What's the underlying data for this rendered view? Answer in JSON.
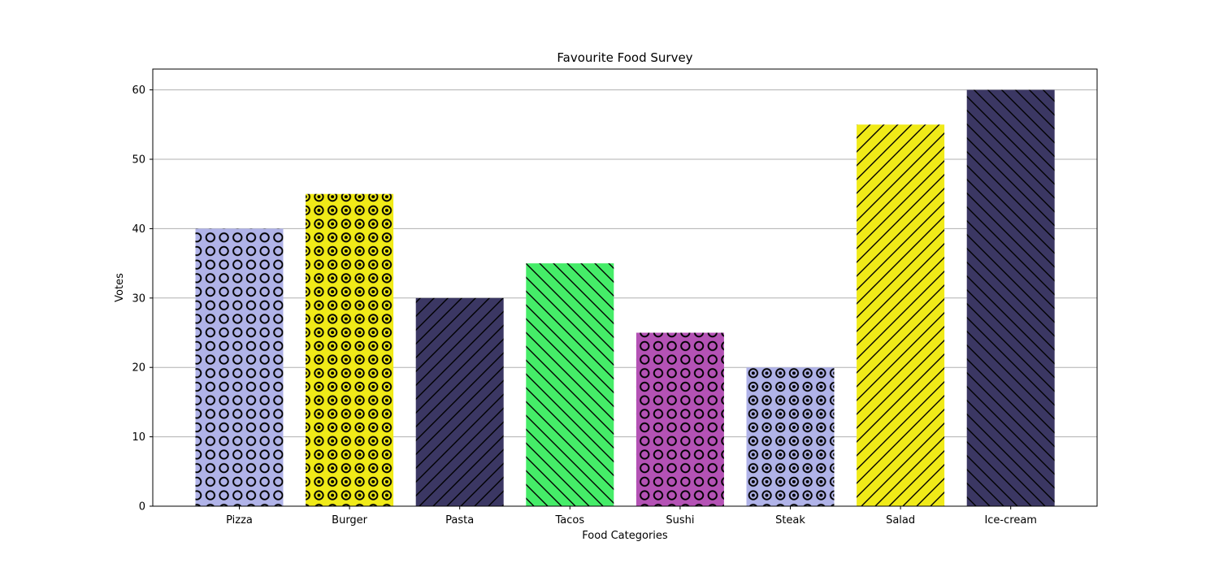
{
  "chart_data": {
    "type": "bar",
    "title": "Favourite Food Survey",
    "xlabel": "Food Categories",
    "ylabel": "Votes",
    "categories": [
      "Pizza",
      "Burger",
      "Pasta",
      "Tacos",
      "Sushi",
      "Steak",
      "Salad",
      "Ice-cream"
    ],
    "values": [
      40,
      45,
      30,
      35,
      25,
      20,
      55,
      60
    ],
    "ylim": [
      0,
      63
    ],
    "yticks": [
      0,
      10,
      20,
      30,
      40,
      50,
      60
    ],
    "grid": "y",
    "colors": [
      "#b0b3e8",
      "#f0ea18",
      "#3b3763",
      "#45ec68",
      "#b452b5",
      "#b0b3e8",
      "#f0ea18",
      "#3b3763"
    ],
    "hatches": [
      "rings",
      "dotted-rings",
      "forward-diagonal",
      "back-diagonal",
      "rings",
      "dotted-rings",
      "forward-diagonal",
      "back-diagonal"
    ]
  }
}
